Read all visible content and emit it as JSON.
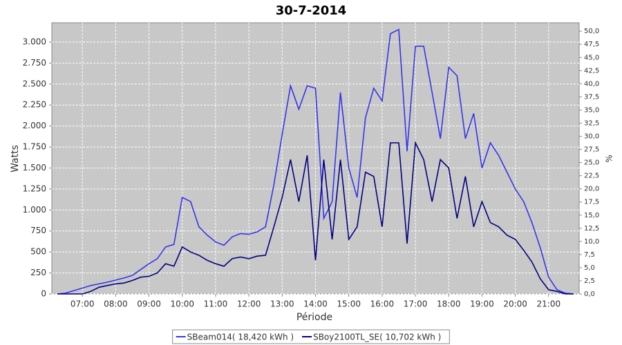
{
  "chart_data": {
    "type": "line",
    "title": "30-7-2014",
    "x_label": "Période",
    "y_label": "Watts",
    "y2_label": "%",
    "x": [
      "06:15",
      "06:30",
      "06:45",
      "07:00",
      "07:15",
      "07:30",
      "07:45",
      "08:00",
      "08:15",
      "08:30",
      "08:45",
      "09:00",
      "09:15",
      "09:30",
      "09:45",
      "10:00",
      "10:15",
      "10:30",
      "10:45",
      "11:00",
      "11:15",
      "11:30",
      "11:45",
      "12:00",
      "12:15",
      "12:30",
      "12:45",
      "13:00",
      "13:15",
      "13:30",
      "13:45",
      "14:00",
      "14:15",
      "14:30",
      "14:45",
      "15:00",
      "15:15",
      "15:30",
      "15:45",
      "16:00",
      "16:15",
      "16:30",
      "16:45",
      "17:00",
      "17:15",
      "17:30",
      "17:45",
      "18:00",
      "18:15",
      "18:30",
      "18:45",
      "19:00",
      "19:15",
      "19:30",
      "19:45",
      "20:00",
      "20:15",
      "20:30",
      "20:45",
      "21:00",
      "21:15",
      "21:30",
      "21:45"
    ],
    "xlim": [
      "06:05",
      "21:55"
    ],
    "xticks": [
      "07:00",
      "08:00",
      "09:00",
      "10:00",
      "11:00",
      "12:00",
      "13:00",
      "14:00",
      "15:00",
      "16:00",
      "17:00",
      "18:00",
      "19:00",
      "20:00",
      "21:00"
    ],
    "series": [
      {
        "name": "SBeam014( 18,420 kWh )",
        "color": "#3434ee",
        "values": [
          0,
          10,
          40,
          70,
          100,
          120,
          140,
          165,
          190,
          220,
          290,
          360,
          420,
          560,
          590,
          1150,
          1100,
          800,
          700,
          620,
          580,
          680,
          720,
          710,
          740,
          800,
          1300,
          1900,
          2480,
          2200,
          2480,
          2450,
          900,
          1100,
          2400,
          1500,
          1150,
          2100,
          2450,
          2300,
          3100,
          3150,
          1700,
          2950,
          2950,
          2400,
          1850,
          2700,
          2600,
          1850,
          2150,
          1500,
          1800,
          1650,
          1450,
          1250,
          1100,
          850,
          550,
          200,
          50,
          10,
          0
        ]
      },
      {
        "name": "SBoy2100TL_SE( 10,702 kWh )",
        "color": "#000080",
        "values": [
          0,
          0,
          0,
          0,
          30,
          80,
          100,
          120,
          130,
          160,
          200,
          210,
          250,
          360,
          330,
          560,
          500,
          460,
          400,
          360,
          330,
          420,
          440,
          420,
          450,
          460,
          800,
          1150,
          1600,
          1100,
          1650,
          400,
          1600,
          650,
          1600,
          650,
          800,
          1450,
          1400,
          800,
          1800,
          1800,
          600,
          1800,
          1600,
          1100,
          1600,
          1500,
          900,
          1400,
          800,
          1100,
          850,
          800,
          700,
          650,
          520,
          380,
          180,
          50,
          30,
          0,
          0
        ]
      }
    ],
    "ylim": [
      0,
      3230
    ],
    "yticks": [
      0,
      250,
      500,
      750,
      {
        "value": 1000,
        "label": "1.000"
      },
      {
        "value": 1250,
        "label": "1.250"
      },
      {
        "value": 1500,
        "label": "1.500"
      },
      {
        "value": 1750,
        "label": "1.750"
      },
      {
        "value": 2000,
        "label": "2.000"
      },
      {
        "value": 2250,
        "label": "2.250"
      },
      {
        "value": 2500,
        "label": "2.500"
      },
      {
        "value": 2750,
        "label": "2.750"
      },
      {
        "value": 3000,
        "label": "3.000"
      }
    ],
    "y2lim": [
      0,
      51.6
    ],
    "y2ticks": [
      {
        "value": 0,
        "label": "0,0"
      },
      {
        "value": 2.5,
        "label": "2,5"
      },
      {
        "value": 5,
        "label": "5,0"
      },
      {
        "value": 7.5,
        "label": "7,5"
      },
      {
        "value": 10,
        "label": "10,0"
      },
      {
        "value": 12.5,
        "label": "12,5"
      },
      {
        "value": 15,
        "label": "15,0"
      },
      {
        "value": 17.5,
        "label": "17,5"
      },
      {
        "value": 20,
        "label": "20,0"
      },
      {
        "value": 22.5,
        "label": "22,5"
      },
      {
        "value": 25,
        "label": "25,0"
      },
      {
        "value": 27.5,
        "label": "27,5"
      },
      {
        "value": 30,
        "label": "30,0"
      },
      {
        "value": 32.5,
        "label": "32,5"
      },
      {
        "value": 35,
        "label": "35,0"
      },
      {
        "value": 37.5,
        "label": "37,5"
      },
      {
        "value": 40,
        "label": "40,0"
      },
      {
        "value": 42.5,
        "label": "42,5"
      },
      {
        "value": 45,
        "label": "45,0"
      },
      {
        "value": 47.5,
        "label": "47,5"
      },
      {
        "value": 50,
        "label": "50,0"
      }
    ],
    "grid": true,
    "plot_background": "#c8c8c8",
    "legend": "bottom"
  }
}
